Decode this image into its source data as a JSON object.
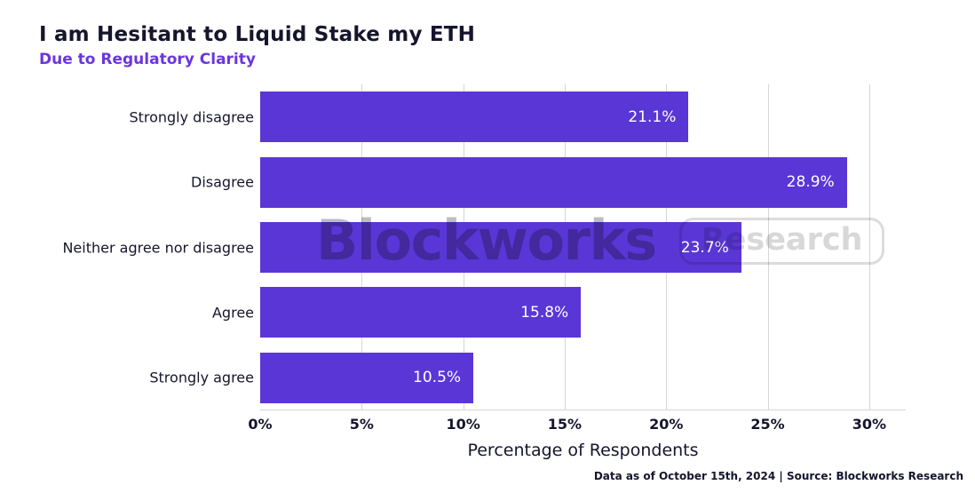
{
  "header": {
    "title": "I am Hesitant to Liquid Stake my ETH",
    "subtitle": "Due to Regulatory Clarity"
  },
  "watermark": {
    "brand": "Blockworks",
    "badge": "Research"
  },
  "footer": {
    "note": "Data as of October 15th, 2024 | Source: Blockworks Research"
  },
  "colors": {
    "bar": "#5a36d6",
    "title_text": "#15152d",
    "subtitle_text": "#6a35e0",
    "gridline": "#d6d6d6",
    "value_label": "#ffffff",
    "watermark": "#bdbdbd"
  },
  "chart_data": {
    "type": "bar",
    "orientation": "horizontal",
    "title": "I am Hesitant to Liquid Stake my ETH",
    "subtitle": "Due to Regulatory Clarity",
    "categories": [
      "Strongly disagree",
      "Disagree",
      "Neither agree nor disagree",
      "Agree",
      "Strongly agree"
    ],
    "values": [
      21.1,
      28.9,
      23.7,
      15.8,
      10.5
    ],
    "value_labels": [
      "21.1%",
      "28.9%",
      "23.7%",
      "15.8%",
      "10.5%"
    ],
    "xlabel": "Percentage of Respondents",
    "ylabel": "",
    "xlim": [
      0,
      31.8
    ],
    "xticks": [
      0,
      5,
      10,
      15,
      20,
      25,
      30
    ],
    "xtick_labels": [
      "0%",
      "5%",
      "10%",
      "15%",
      "20%",
      "25%",
      "30%"
    ],
    "grid": "vertical",
    "legend": "none"
  }
}
